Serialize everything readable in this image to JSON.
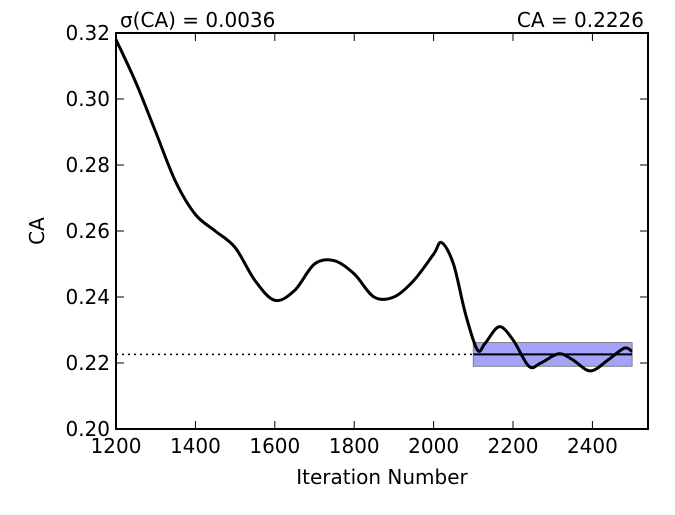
{
  "chart_data": {
    "type": "line",
    "title_left": "σ(CA) = 0.0036",
    "title_right": "CA = 0.2226",
    "xlabel": "Iteration Number",
    "ylabel": "CA",
    "xlim": [
      1200,
      2540
    ],
    "ylim": [
      0.2,
      0.32
    ],
    "xticks": [
      1200,
      1400,
      1600,
      1800,
      2000,
      2200,
      2400
    ],
    "xtick_labels": [
      "1200",
      "1400",
      "1600",
      "1800",
      "2000",
      "2200",
      "2400"
    ],
    "yticks": [
      0.2,
      0.22,
      0.24,
      0.26,
      0.28,
      0.3,
      0.32
    ],
    "ytick_labels": [
      "0.20",
      "0.22",
      "0.24",
      "0.26",
      "0.28",
      "0.30",
      "0.32"
    ],
    "grid": false,
    "mean": 0.2226,
    "std": 0.0036,
    "band_x": [
      2100,
      2500
    ],
    "band_color": "#a3a3fb",
    "series": [
      {
        "name": "CA",
        "color": "#000000",
        "x": [
          1200,
          1250,
          1300,
          1350,
          1400,
          1450,
          1500,
          1550,
          1600,
          1650,
          1700,
          1750,
          1800,
          1850,
          1900,
          1950,
          2000,
          2020,
          2050,
          2080,
          2110,
          2130,
          2165,
          2200,
          2240,
          2270,
          2315,
          2350,
          2395,
          2440,
          2480,
          2500
        ],
        "y": [
          0.318,
          0.305,
          0.29,
          0.275,
          0.265,
          0.26,
          0.255,
          0.245,
          0.239,
          0.242,
          0.25,
          0.251,
          0.247,
          0.24,
          0.24,
          0.245,
          0.253,
          0.2565,
          0.25,
          0.235,
          0.224,
          0.226,
          0.231,
          0.227,
          0.219,
          0.22,
          0.2228,
          0.221,
          0.2176,
          0.221,
          0.2245,
          0.2235
        ]
      }
    ]
  }
}
